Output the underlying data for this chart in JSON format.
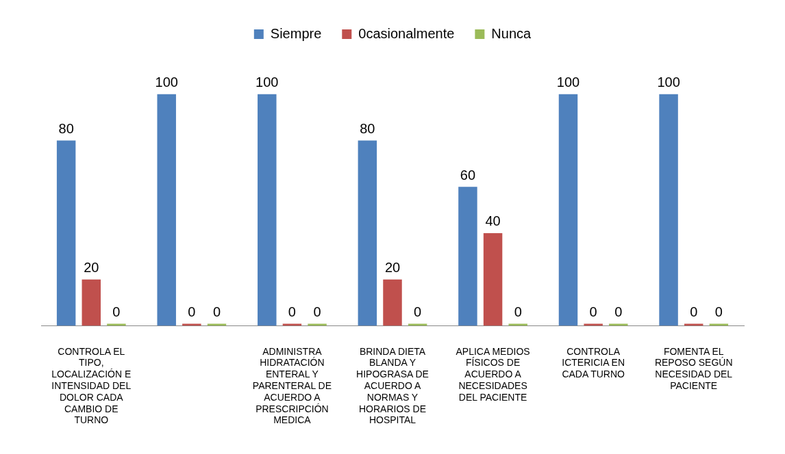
{
  "chart_data": {
    "type": "bar",
    "categories": [
      "CONTROLA EL TIPO, LOCALIZACIÓN E INTENSIDAD DEL DOLOR CADA CAMBIO DE TURNO",
      null,
      "ADMINISTRA HIDRATACIÓN ENTERAL Y PARENTERAL DE ACUERDO A PRESCRIPCIÓN MEDICA",
      "BRINDA DIETA BLANDA Y HIPOGRASA DE ACUERDO A NORMAS Y HORARIOS DE HOSPITAL",
      "APLICA MEDIOS FÍSICOS DE ACUERDO A NECESIDADES DEL PACIENTE",
      "CONTROLA ICTERICIA EN CADA TURNO",
      "FOMENTA EL REPOSO SEGÚN NECESIDAD DEL PACIENTE"
    ],
    "series": [
      {
        "name": "Siempre",
        "color": "#4f81bd",
        "values": [
          80,
          100,
          100,
          80,
          60,
          100,
          100
        ]
      },
      {
        "name": "0casionalmente",
        "color": "#c0504d",
        "values": [
          20,
          0,
          0,
          20,
          40,
          0,
          0
        ]
      },
      {
        "name": "Nunca",
        "color": "#9bbb59",
        "values": [
          0,
          0,
          0,
          0,
          0,
          0,
          0
        ]
      }
    ],
    "data_labels": true,
    "legend": "top",
    "grid": false,
    "tick_labels": "x"
  }
}
